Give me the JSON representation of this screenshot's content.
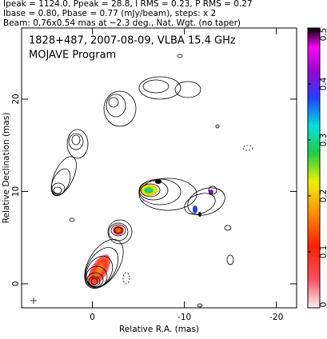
{
  "chart_data": {
    "type": "contour",
    "header": [
      "Ipeak = 1124.0, Ppeak = 28.8, I RMS = 0.23, P RMS = 0.27",
      "Ibase = 0.80, Pbase = 0.77 (mJy/beam), steps: x 2",
      "Beam: 0.76x0.54 mas at −2.3 deg., Nat. Wgt. (no taper)"
    ],
    "title": "1828+487, 2007-08-09, VLBA 15.4 GHz",
    "subtitle": "MOJAVE Program",
    "xlabel": "Relative R.A. (mas)",
    "ylabel": "Relative Declination (mas)",
    "xlim": [
      7.7,
      -22.2
    ],
    "xticks": [
      0,
      -10,
      -20
    ],
    "ylim": [
      -2.6,
      27.7
    ],
    "yticks": [
      0,
      10,
      20
    ],
    "colorbar": {
      "lim": [
        0,
        0.5
      ],
      "ticks": [
        0,
        0.1,
        0.2,
        0.3,
        0.4,
        0.5
      ]
    }
  }
}
